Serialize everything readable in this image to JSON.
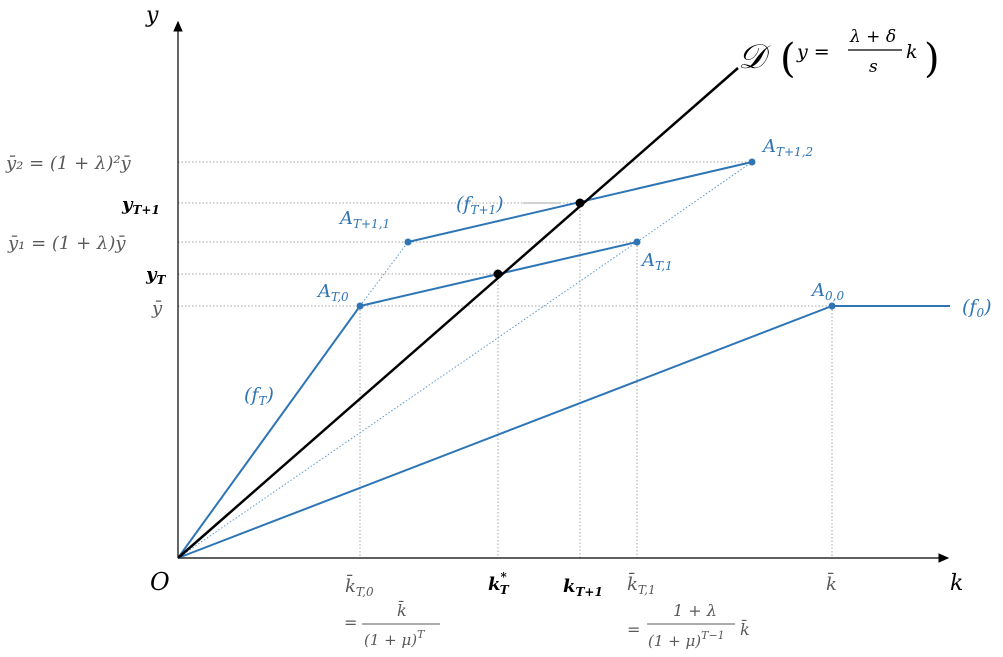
{
  "axes": {
    "x_label": "k",
    "y_label": "y",
    "origin": "O"
  },
  "line_D": {
    "symbol": "𝒟",
    "equation_lhs": "y =",
    "numerator": "λ + δ",
    "denominator": "s",
    "variable": "k"
  },
  "y_ticks": {
    "y2": "ȳ₂ = (1 + λ)²ȳ",
    "yT1": "y",
    "yT1_sub": "T+1",
    "y1": "ȳ₁ = (1 + λ)ȳ",
    "yT": "y",
    "yT_sub": "T",
    "ybar": "ȳ"
  },
  "x_ticks": {
    "kT0": "k̄",
    "kT0_sub": "T,0",
    "kT0_eq": "=",
    "kT0_num": "k̄",
    "kT0_den": "(1 + μ)",
    "kT0_den_sup": "T",
    "kstar": "k",
    "kstar_sup": "*",
    "kstar_sub": "T",
    "kT1next": "k",
    "kT1next_sub": "T+1",
    "kT1": "k̄",
    "kT1_sub": "T,1",
    "kT1_eq": "=",
    "kT1_num": "1 + λ",
    "kT1_den": "(1 + μ)",
    "kT1_den_sup": "T−1",
    "kT1_tail": "k̄",
    "kbar": "k̄"
  },
  "points": {
    "AT0": "A",
    "AT0_sub": "T,0",
    "AT11": "A",
    "AT11_sub": "T+1,1",
    "AT1": "A",
    "AT1_sub": "T,1",
    "AT12": "A",
    "AT12_sub": "T+1,2",
    "A00": "A",
    "A00_sub": "0,0"
  },
  "curves": {
    "fT": "(f",
    "fT_sub": "T",
    "fT_close": ")",
    "fT1": "(f",
    "fT1_sub": "T+1",
    "fT1_close": ")",
    "f0": "(f",
    "f0_sub": "0",
    "f0_close": ")"
  },
  "colors": {
    "curve": "#2e75b6",
    "line_D": "#000000",
    "grid": "#a6a6a6"
  }
}
